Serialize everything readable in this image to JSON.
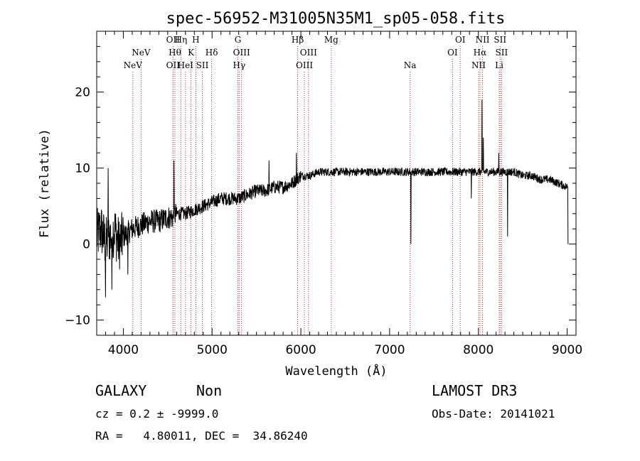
{
  "chart_data": {
    "type": "line",
    "title": "spec-56952-M31005N35M1_sp05-058.fits",
    "xlabel": "Wavelength (Å)",
    "ylabel": "Flux (relative)",
    "xlim": [
      3700,
      9100
    ],
    "ylim": [
      -12,
      28
    ],
    "xticks": [
      4000,
      5000,
      6000,
      7000,
      8000,
      9000
    ],
    "yticks": [
      -10,
      0,
      10,
      20
    ],
    "xtick_labels": [
      "4000",
      "5000",
      "6000",
      "7000",
      "8000",
      "9000"
    ],
    "ytick_labels": [
      "−10",
      "0",
      "10",
      "20"
    ],
    "spectrum_anchors": {
      "x": [
        3700,
        3750,
        3800,
        3850,
        3900,
        3950,
        4000,
        4100,
        4200,
        4300,
        4400,
        4500,
        4560,
        4600,
        4700,
        4800,
        4900,
        5000,
        5100,
        5200,
        5300,
        5400,
        5500,
        5600,
        5700,
        5800,
        5900,
        5950,
        6000,
        6100,
        6200,
        6300,
        6400,
        6500,
        6600,
        6700,
        6800,
        6900,
        7000,
        7100,
        7200,
        7300,
        7400,
        7500,
        7600,
        7700,
        7800,
        7900,
        7950,
        8000,
        8100,
        8200,
        8300,
        8400,
        8500,
        8600,
        8700,
        8800,
        8900,
        9000
      ],
      "y": [
        1,
        2,
        0,
        1,
        2,
        0,
        1,
        2,
        2.5,
        3,
        3,
        3.5,
        3.5,
        4,
        4,
        4.5,
        5,
        5.5,
        6,
        6,
        6,
        6.5,
        7,
        7,
        7.5,
        7.5,
        8,
        8.5,
        9,
        9,
        9.5,
        9.5,
        9.5,
        9.5,
        9.5,
        9.5,
        9.5,
        9.5,
        9.5,
        9.5,
        9.5,
        9.5,
        9.5,
        9.5,
        9.5,
        9.5,
        9.5,
        9.5,
        9.5,
        9.5,
        9.5,
        9.5,
        9.5,
        9.5,
        9,
        9,
        8.5,
        8.5,
        8,
        7.5
      ]
    },
    "spectrum_features": [
      {
        "x": 3800,
        "y": -7
      },
      {
        "x": 3830,
        "y": 10
      },
      {
        "x": 3870,
        "y": -6
      },
      {
        "x": 4050,
        "y": -4
      },
      {
        "x": 4570,
        "y": 11
      },
      {
        "x": 5640,
        "y": 11
      },
      {
        "x": 5950,
        "y": 12
      },
      {
        "x": 7240,
        "y": 0
      },
      {
        "x": 7920,
        "y": 6
      },
      {
        "x": 8040,
        "y": 19
      },
      {
        "x": 8055,
        "y": 14
      },
      {
        "x": 8230,
        "y": 12
      },
      {
        "x": 8330,
        "y": 1
      },
      {
        "x": 9010,
        "y": 0
      }
    ],
    "emission_lines": [
      {
        "label": "NeV",
        "x": 4107,
        "row": 3
      },
      {
        "label": "NeV",
        "x": 4200,
        "row": 2
      },
      {
        "label": "OII",
        "x": 4560,
        "row": 1
      },
      {
        "label": "OII",
        "x": 4560,
        "row": 3
      },
      {
        "label": "Hθ",
        "x": 4581,
        "row": 2
      },
      {
        "label": "Hη",
        "x": 4648,
        "row": 1
      },
      {
        "label": "HeI",
        "x": 4700,
        "row": 3
      },
      {
        "label": "K",
        "x": 4762,
        "row": 2
      },
      {
        "label": "H",
        "x": 4817,
        "row": 1
      },
      {
        "label": "SII",
        "x": 4890,
        "row": 3
      },
      {
        "label": "Hδ",
        "x": 4995,
        "row": 2
      },
      {
        "label": "G",
        "x": 5291,
        "row": 1
      },
      {
        "label": "OIII",
        "x": 5332,
        "row": 2
      },
      {
        "label": "Hγ",
        "x": 5305,
        "row": 3
      },
      {
        "label": "Hβ",
        "x": 5964,
        "row": 1
      },
      {
        "label": "OIII",
        "x": 6086,
        "row": 2
      },
      {
        "label": "OIII",
        "x": 6040,
        "row": 3
      },
      {
        "label": "Mg",
        "x": 6343,
        "row": 1
      },
      {
        "label": "Na",
        "x": 7230,
        "row": 3
      },
      {
        "label": "OI",
        "x": 7796,
        "row": 1
      },
      {
        "label": "OI",
        "x": 7709,
        "row": 2
      },
      {
        "label": "NII",
        "x": 8047,
        "row": 1
      },
      {
        "label": "Hα",
        "x": 8018,
        "row": 2
      },
      {
        "label": "NII",
        "x": 8002,
        "row": 3
      },
      {
        "label": "SII",
        "x": 8245,
        "row": 1
      },
      {
        "label": "SII",
        "x": 8262,
        "row": 2
      },
      {
        "label": "Li",
        "x": 8235,
        "row": 3
      }
    ]
  },
  "info": {
    "object_class": "GALAXY",
    "object_subclass": "Non",
    "survey": "LAMOST DR3",
    "cz_line": "cz = 0.2 ± -9999.0",
    "obs_date_line": "Obs-Date: 20141021",
    "coords_line": "RA =   4.80011, DEC =  34.86240"
  }
}
